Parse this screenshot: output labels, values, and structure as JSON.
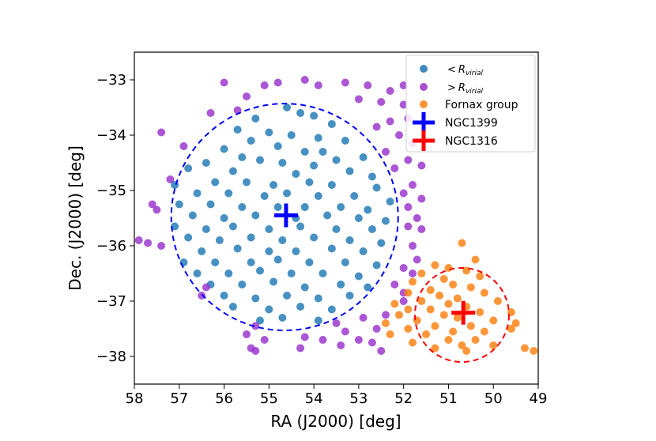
{
  "chart_data": {
    "type": "scatter",
    "xlabel": "RA (J2000) [deg]",
    "ylabel": "Dec. (J2000) [deg]",
    "xlim": [
      58,
      49
    ],
    "ylim": [
      -38.5,
      -32.5
    ],
    "xticks": [
      58,
      57,
      56,
      55,
      54,
      53,
      52,
      51,
      50,
      49
    ],
    "yticks": [
      -33,
      -34,
      -35,
      -36,
      -37,
      -38
    ],
    "xtick_labels": [
      "58",
      "57",
      "56",
      "55",
      "54",
      "53",
      "52",
      "51",
      "50",
      "49"
    ],
    "ytick_labels": [
      "−33",
      "−34",
      "−35",
      "−36",
      "−37",
      "−38"
    ],
    "legend_position": "top-right",
    "legend": [
      {
        "label_prefix": "<",
        "label_main": "R",
        "label_sub": "virial",
        "marker": "dot",
        "color": "#1f77b4"
      },
      {
        "label_prefix": ">",
        "label_main": "R",
        "label_sub": "virial",
        "marker": "dot",
        "color": "#9932cc"
      },
      {
        "label_prefix": "",
        "label_main": "Fornax group",
        "label_sub": "",
        "marker": "dot",
        "color": "#ff7f0e"
      },
      {
        "label_prefix": "",
        "label_main": "NGC1399",
        "label_sub": "",
        "marker": "plus",
        "color": "#0000ff"
      },
      {
        "label_prefix": "",
        "label_main": "NGC1316",
        "label_sub": "",
        "marker": "plus",
        "color": "#ff0000"
      }
    ],
    "circles": [
      {
        "name": "virial-radius-ngc1399",
        "center": [
          54.65,
          -35.48
        ],
        "radius_dec": 2.05,
        "color": "#0000ff",
        "style": "dashed"
      },
      {
        "name": "virial-radius-ngc1316",
        "center": [
          50.7,
          -37.25
        ],
        "radius_dec": 0.85,
        "color": "#ff0000",
        "style": "dashed"
      }
    ],
    "centers": [
      {
        "name": "NGC1399",
        "ra": 54.62,
        "dec": -35.45,
        "color": "#0000ff"
      },
      {
        "name": "NGC1316",
        "ra": 50.67,
        "dec": -37.21,
        "color": "#ff0000"
      }
    ],
    "series": [
      {
        "name": "inside-virial",
        "color": "#1f77b4",
        "points": [
          [
            54.6,
            -33.5
          ],
          [
            54.3,
            -33.6
          ],
          [
            55.3,
            -33.7
          ],
          [
            54.0,
            -33.65
          ],
          [
            53.6,
            -33.8
          ],
          [
            55.7,
            -33.9
          ],
          [
            55.0,
            -33.95
          ],
          [
            54.5,
            -34.0
          ],
          [
            53.9,
            -34.05
          ],
          [
            55.4,
            -34.1
          ],
          [
            53.3,
            -34.1
          ],
          [
            56.0,
            -34.25
          ],
          [
            54.8,
            -34.2
          ],
          [
            54.2,
            -34.3
          ],
          [
            53.8,
            -34.3
          ],
          [
            55.6,
            -34.4
          ],
          [
            53.5,
            -34.45
          ],
          [
            52.9,
            -34.4
          ],
          [
            56.4,
            -34.5
          ],
          [
            55.2,
            -34.45
          ],
          [
            54.7,
            -34.5
          ],
          [
            54.0,
            -34.55
          ],
          [
            56.8,
            -34.6
          ],
          [
            55.8,
            -34.65
          ],
          [
            54.4,
            -34.7
          ],
          [
            53.2,
            -34.65
          ],
          [
            52.7,
            -34.75
          ],
          [
            57.1,
            -34.9
          ],
          [
            56.2,
            -34.85
          ],
          [
            55.5,
            -34.85
          ],
          [
            54.9,
            -34.9
          ],
          [
            54.1,
            -34.85
          ],
          [
            53.6,
            -34.9
          ],
          [
            52.6,
            -34.95
          ],
          [
            56.6,
            -35.05
          ],
          [
            55.9,
            -35.05
          ],
          [
            55.1,
            -35.1
          ],
          [
            54.6,
            -35.05
          ],
          [
            53.9,
            -35.1
          ],
          [
            53.1,
            -35.1
          ],
          [
            52.3,
            -35.2
          ],
          [
            57.0,
            -35.25
          ],
          [
            56.3,
            -35.25
          ],
          [
            55.6,
            -35.3
          ],
          [
            54.8,
            -35.3
          ],
          [
            54.2,
            -35.3
          ],
          [
            53.4,
            -35.3
          ],
          [
            52.8,
            -35.35
          ],
          [
            56.7,
            -35.45
          ],
          [
            56.0,
            -35.5
          ],
          [
            55.3,
            -35.45
          ],
          [
            54.4,
            -35.5
          ],
          [
            53.7,
            -35.45
          ],
          [
            53.0,
            -35.5
          ],
          [
            52.4,
            -35.55
          ],
          [
            57.1,
            -35.65
          ],
          [
            56.4,
            -35.7
          ],
          [
            55.8,
            -35.65
          ],
          [
            55.0,
            -35.7
          ],
          [
            54.3,
            -35.65
          ],
          [
            53.5,
            -35.7
          ],
          [
            52.7,
            -35.7
          ],
          [
            56.8,
            -35.85
          ],
          [
            56.1,
            -35.9
          ],
          [
            55.4,
            -35.85
          ],
          [
            54.7,
            -35.9
          ],
          [
            54.0,
            -35.85
          ],
          [
            53.2,
            -35.9
          ],
          [
            52.5,
            -35.95
          ],
          [
            56.5,
            -36.1
          ],
          [
            55.7,
            -36.05
          ],
          [
            55.0,
            -36.1
          ],
          [
            54.4,
            -36.1
          ],
          [
            53.6,
            -36.05
          ],
          [
            52.9,
            -36.1
          ],
          [
            56.9,
            -36.3
          ],
          [
            56.2,
            -36.3
          ],
          [
            55.4,
            -36.3
          ],
          [
            54.8,
            -36.25
          ],
          [
            54.1,
            -36.3
          ],
          [
            53.3,
            -36.3
          ],
          [
            52.6,
            -36.35
          ],
          [
            56.6,
            -36.5
          ],
          [
            55.9,
            -36.5
          ],
          [
            55.2,
            -36.45
          ],
          [
            54.5,
            -36.5
          ],
          [
            53.8,
            -36.5
          ],
          [
            53.0,
            -36.55
          ],
          [
            56.3,
            -36.7
          ],
          [
            55.6,
            -36.7
          ],
          [
            54.9,
            -36.65
          ],
          [
            54.2,
            -36.75
          ],
          [
            53.4,
            -36.7
          ],
          [
            52.8,
            -36.75
          ],
          [
            56.0,
            -36.9
          ],
          [
            55.3,
            -36.95
          ],
          [
            54.6,
            -36.9
          ],
          [
            53.9,
            -36.95
          ],
          [
            53.2,
            -36.9
          ],
          [
            55.8,
            -37.1
          ],
          [
            55.0,
            -37.15
          ],
          [
            54.3,
            -37.1
          ],
          [
            53.6,
            -37.15
          ],
          [
            55.2,
            -37.35
          ],
          [
            54.7,
            -37.3
          ],
          [
            53.9,
            -37.35
          ]
        ]
      },
      {
        "name": "outside-virial",
        "color": "#9932cc",
        "points": [
          [
            56.0,
            -33.05
          ],
          [
            55.1,
            -33.1
          ],
          [
            54.8,
            -33.05
          ],
          [
            54.2,
            -33.0
          ],
          [
            53.9,
            -33.1
          ],
          [
            53.3,
            -33.05
          ],
          [
            52.8,
            -33.1
          ],
          [
            52.3,
            -33.2
          ],
          [
            52.0,
            -33.1
          ],
          [
            55.5,
            -33.3
          ],
          [
            53.0,
            -33.35
          ],
          [
            52.5,
            -33.4
          ],
          [
            52.0,
            -33.45
          ],
          [
            51.9,
            -33.7
          ],
          [
            52.3,
            -33.75
          ],
          [
            56.3,
            -33.6
          ],
          [
            55.7,
            -33.55
          ],
          [
            52.6,
            -33.85
          ],
          [
            52.1,
            -34.0
          ],
          [
            51.8,
            -34.15
          ],
          [
            57.4,
            -33.95
          ],
          [
            56.9,
            -34.2
          ],
          [
            52.4,
            -34.3
          ],
          [
            51.9,
            -34.45
          ],
          [
            51.6,
            -34.55
          ],
          [
            52.2,
            -34.6
          ],
          [
            57.2,
            -34.8
          ],
          [
            51.8,
            -34.9
          ],
          [
            52.0,
            -35.05
          ],
          [
            51.6,
            -35.15
          ],
          [
            51.9,
            -35.3
          ],
          [
            57.6,
            -35.25
          ],
          [
            57.5,
            -35.35
          ],
          [
            51.7,
            -35.5
          ],
          [
            51.9,
            -35.65
          ],
          [
            51.6,
            -35.7
          ],
          [
            57.9,
            -35.9
          ],
          [
            57.7,
            -35.95
          ],
          [
            57.4,
            -36.0
          ],
          [
            51.8,
            -36.0
          ],
          [
            51.7,
            -36.25
          ],
          [
            52.0,
            -36.4
          ],
          [
            51.8,
            -36.5
          ],
          [
            52.2,
            -36.7
          ],
          [
            52.0,
            -36.85
          ],
          [
            56.4,
            -36.75
          ],
          [
            56.5,
            -36.9
          ],
          [
            52.0,
            -37.0
          ],
          [
            52.4,
            -37.25
          ],
          [
            52.9,
            -37.3
          ],
          [
            53.5,
            -37.4
          ],
          [
            52.6,
            -37.5
          ],
          [
            53.3,
            -37.55
          ],
          [
            55.3,
            -37.45
          ],
          [
            55.5,
            -37.6
          ],
          [
            53.0,
            -37.7
          ],
          [
            52.7,
            -37.75
          ],
          [
            54.2,
            -37.65
          ],
          [
            53.8,
            -37.7
          ],
          [
            55.1,
            -37.7
          ],
          [
            53.4,
            -37.8
          ],
          [
            55.4,
            -37.85
          ],
          [
            55.3,
            -37.9
          ],
          [
            54.3,
            -37.85
          ],
          [
            52.5,
            -37.9
          ]
        ]
      },
      {
        "name": "fornax-group",
        "color": "#ff7f0e",
        "points": [
          [
            50.7,
            -35.95
          ],
          [
            50.4,
            -36.25
          ],
          [
            51.3,
            -36.35
          ],
          [
            51.0,
            -36.4
          ],
          [
            50.6,
            -36.45
          ],
          [
            51.6,
            -36.5
          ],
          [
            50.3,
            -36.55
          ],
          [
            51.1,
            -36.6
          ],
          [
            51.8,
            -36.65
          ],
          [
            50.9,
            -36.7
          ],
          [
            50.5,
            -36.75
          ],
          [
            51.4,
            -36.8
          ],
          [
            51.9,
            -36.85
          ],
          [
            50.2,
            -36.85
          ],
          [
            51.2,
            -36.9
          ],
          [
            50.8,
            -36.95
          ],
          [
            51.6,
            -37.0
          ],
          [
            49.9,
            -37.0
          ],
          [
            52.2,
            -37.05
          ],
          [
            51.0,
            -37.05
          ],
          [
            50.6,
            -37.1
          ],
          [
            51.9,
            -37.15
          ],
          [
            51.4,
            -37.15
          ],
          [
            50.3,
            -37.2
          ],
          [
            49.6,
            -37.2
          ],
          [
            52.1,
            -37.25
          ],
          [
            51.1,
            -37.25
          ],
          [
            50.8,
            -37.3
          ],
          [
            51.7,
            -37.35
          ],
          [
            50.0,
            -37.35
          ],
          [
            52.4,
            -37.4
          ],
          [
            51.3,
            -37.45
          ],
          [
            50.5,
            -37.45
          ],
          [
            49.5,
            -37.4
          ],
          [
            51.9,
            -37.5
          ],
          [
            50.9,
            -37.55
          ],
          [
            50.2,
            -37.55
          ],
          [
            52.3,
            -37.6
          ],
          [
            51.5,
            -37.6
          ],
          [
            49.6,
            -37.5
          ],
          [
            51.0,
            -37.7
          ],
          [
            50.4,
            -37.7
          ],
          [
            51.8,
            -37.75
          ],
          [
            50.7,
            -37.8
          ],
          [
            50.0,
            -37.8
          ],
          [
            51.3,
            -37.85
          ],
          [
            50.6,
            -37.9
          ],
          [
            49.3,
            -37.85
          ],
          [
            49.1,
            -37.9
          ]
        ]
      }
    ]
  }
}
